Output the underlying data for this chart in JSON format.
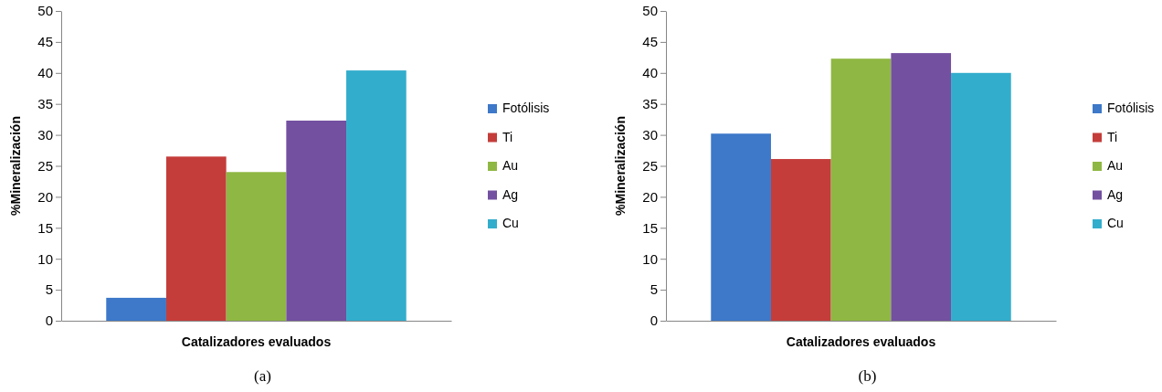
{
  "chart_data": [
    {
      "type": "bar",
      "xlabel": "Catalizadores evaluados",
      "ylabel": "%Mineralización",
      "categories": [
        null
      ],
      "ylim": [
        0,
        50
      ],
      "yticks": [
        0,
        5,
        10,
        15,
        20,
        25,
        30,
        35,
        40,
        45,
        50
      ],
      "grid": false,
      "legend": "right",
      "annotations": [
        "(a)"
      ],
      "series": [
        {
          "name": "Fotólisis",
          "color": "#3d78c9",
          "values": [
            3.7
          ]
        },
        {
          "name": "Ti",
          "color": "#c43d3a",
          "values": [
            26.5
          ]
        },
        {
          "name": "Au",
          "color": "#8fb743",
          "values": [
            24.0
          ]
        },
        {
          "name": "Ag",
          "color": "#7350a0",
          "values": [
            32.3
          ]
        },
        {
          "name": "Cu",
          "color": "#33adcc",
          "values": [
            40.4
          ]
        }
      ]
    },
    {
      "type": "bar",
      "xlabel": "Catalizadores evaluados",
      "ylabel": "%Mineralización",
      "categories": [
        null
      ],
      "ylim": [
        0,
        50
      ],
      "yticks": [
        0,
        5,
        10,
        15,
        20,
        25,
        30,
        35,
        40,
        45,
        50
      ],
      "grid": false,
      "legend": "right",
      "annotations": [
        "(b)"
      ],
      "series": [
        {
          "name": "Fotólisis",
          "color": "#3d78c9",
          "values": [
            30.2
          ]
        },
        {
          "name": "Ti",
          "color": "#c43d3a",
          "values": [
            26.1
          ]
        },
        {
          "name": "Au",
          "color": "#8fb743",
          "values": [
            42.3
          ]
        },
        {
          "name": "Ag",
          "color": "#7350a0",
          "values": [
            43.2
          ]
        },
        {
          "name": "Cu",
          "color": "#33adcc",
          "values": [
            40.0
          ]
        }
      ]
    }
  ]
}
